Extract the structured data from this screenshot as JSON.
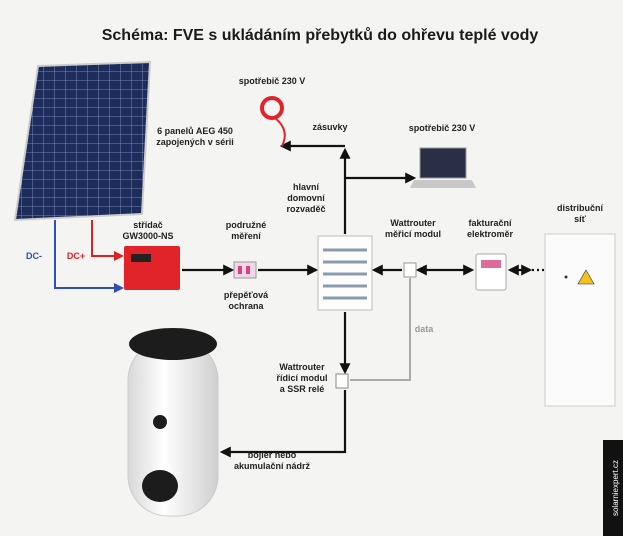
{
  "title": "Schéma: FVE s ukládáním přebytků do ohřevu teplé vody",
  "nodes": [
    {
      "lines": [
        "6 panelů AEG 450",
        "zapojených v sérii"
      ]
    },
    {
      "lines": [
        "spotřebič 230 V"
      ]
    },
    {
      "lines": [
        "zásuvky"
      ]
    },
    {
      "lines": [
        "spotřebič 230 V"
      ]
    },
    {
      "lines": [
        "hlavní",
        "domovní",
        "rozvaděč"
      ]
    },
    {
      "lines": [
        "střídač",
        "GW3000-NS"
      ]
    },
    {
      "lines": [
        "podružné",
        "měření"
      ]
    },
    {
      "lines": [
        "DC-"
      ]
    },
    {
      "lines": [
        "DC+"
      ]
    },
    {
      "lines": [
        "přepěťová",
        "ochrana"
      ]
    },
    {
      "lines": [
        "Wattrouter",
        "měřicí modul"
      ]
    },
    {
      "lines": [
        "fakturační",
        "elektroměr"
      ]
    },
    {
      "lines": [
        "distribuční",
        "síť"
      ]
    },
    {
      "lines": [
        "data"
      ]
    },
    {
      "lines": [
        "Wattrouter",
        "řídicí modul",
        "a SSR relé"
      ]
    },
    {
      "lines": [
        "bojler nebo",
        "akumulační nádrž"
      ]
    }
  ],
  "watermark": "solarniexpert.cz"
}
